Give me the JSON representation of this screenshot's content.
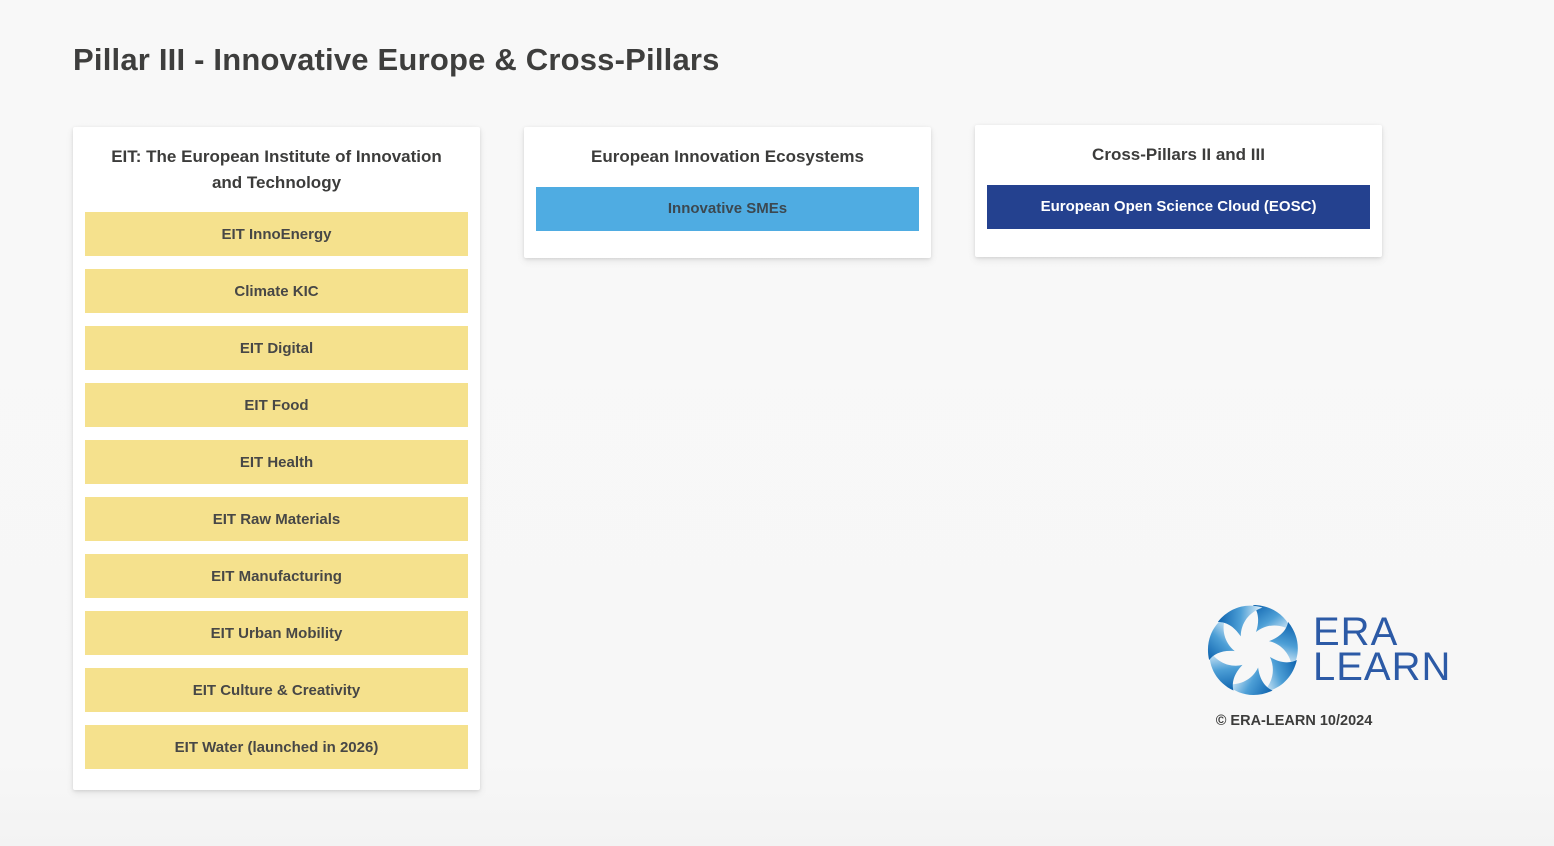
{
  "page": {
    "title": "Pillar III - Innovative Europe & Cross-Pillars"
  },
  "columns": [
    {
      "title": "EIT: The European Institute of Innovation and Technology",
      "style": "yellow",
      "items": [
        "EIT InnoEnergy",
        "Climate KIC",
        "EIT Digital",
        "EIT Food",
        "EIT Health",
        "EIT Raw Materials",
        "EIT Manufacturing",
        "EIT Urban Mobility",
        "EIT Culture & Creativity",
        "EIT Water (launched in 2026)"
      ]
    },
    {
      "title": "European Innovation Ecosystems",
      "style": "lightblue",
      "items": [
        "Innovative SMEs"
      ]
    },
    {
      "title": "Cross-Pillars II and III",
      "style": "darkblue",
      "items": [
        "European Open Science Cloud (EOSC)"
      ]
    }
  ],
  "footer": {
    "logo_icon": "era-learn-swirl-logo",
    "logo_word_1": "ERA",
    "logo_word_2": "LEARN",
    "copyright": "© ERA-LEARN 10/2024"
  },
  "colors": {
    "background": "#F7F7F7",
    "card": "#FFFFFF",
    "yellow_node": "#F5E18D",
    "lightblue_node": "#4FACE2",
    "darkblue_node": "#24418F",
    "heading_text": "#3E3E3D",
    "node_text_dark": "#474746",
    "node_text_light": "#FFFFFF",
    "logo_blue": "#2C5AA6"
  }
}
